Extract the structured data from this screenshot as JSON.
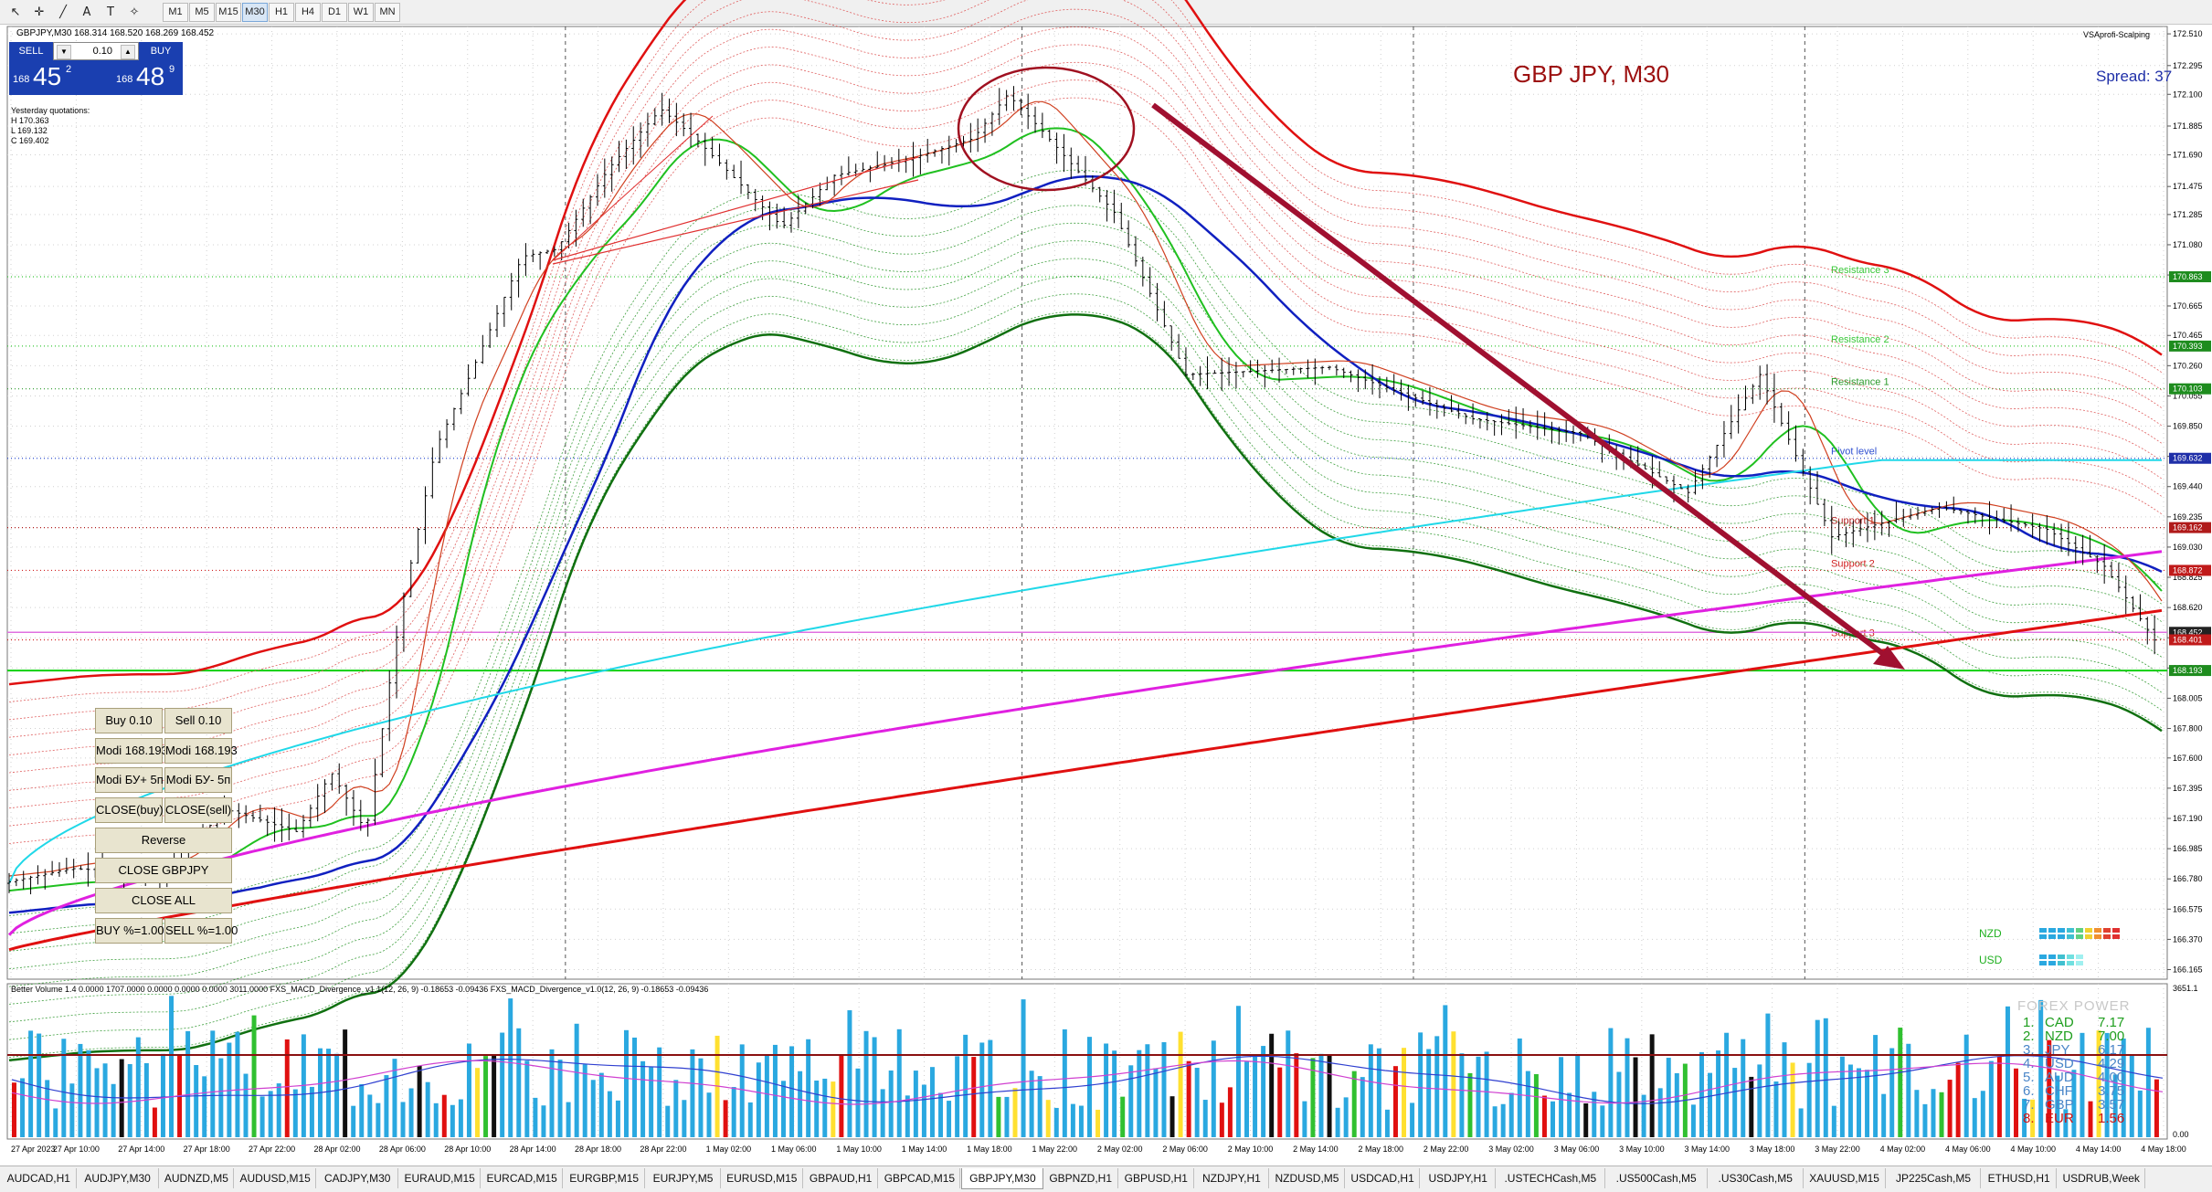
{
  "toolbar": {
    "timeframes": [
      "M1",
      "M5",
      "M15",
      "M30",
      "H1",
      "H4",
      "D1",
      "W1",
      "MN"
    ],
    "selected_timeframe": "M30",
    "tools": [
      "cursor-icon",
      "crosshair-icon",
      "pen-icon",
      "text-icon",
      "label-icon",
      "shapes-icon"
    ]
  },
  "symbol_title": "GBPJPY,M30  168.314 168.520 168.269 168.452",
  "trade_panel": {
    "sell_label": "SELL",
    "buy_label": "BUY",
    "lot": "0.10",
    "sell_price_prefix": "168",
    "sell_price_big": "45",
    "sell_price_sup": "2",
    "buy_price_prefix": "168",
    "buy_price_big": "48",
    "buy_price_sup": "9"
  },
  "yesterday_quotations": {
    "title": "Yesterday quotations:",
    "h": "H 170.363",
    "l": "L 169.132",
    "c": "C 169.402"
  },
  "chart_label": "GBP JPY, M30",
  "spread_label": "Spread: 37",
  "vsa_label": "VSAprofi-Scalping",
  "levels": {
    "resistance3": "Resistance 3",
    "resistance2": "Resistance 2",
    "resistance1": "Resistance 1",
    "pivot": "Pivot level",
    "support1": "Support 1",
    "support2": "Support 2",
    "support3": "Support 3"
  },
  "price_axis": [
    "172.510",
    "172.295",
    "172.100",
    "171.885",
    "171.690",
    "171.475",
    "171.285",
    "171.080",
    "170.875",
    "170.665",
    "170.465",
    "170.260",
    "170.055",
    "169.850",
    "169.645",
    "169.440",
    "169.235",
    "169.030",
    "168.825",
    "168.620",
    "168.415",
    "168.210",
    "168.005",
    "167.800",
    "167.600",
    "167.395",
    "167.190",
    "166.985",
    "166.780",
    "166.575",
    "166.370",
    "166.165"
  ],
  "price_tags": [
    {
      "label": "170.863",
      "color": "#1e8c1e"
    },
    {
      "label": "170.393",
      "color": "#1e8c1e"
    },
    {
      "label": "170.103",
      "color": "#1e8c1e"
    },
    {
      "label": "169.632",
      "color": "#1f2fa8"
    },
    {
      "label": "169.162",
      "color": "#b01a1a"
    },
    {
      "label": "168.872",
      "color": "#c01a1a"
    },
    {
      "label": "168.452",
      "color": "#222222"
    },
    {
      "label": "168.401",
      "color": "#c01a1a"
    },
    {
      "label": "168.193",
      "color": "#1e8c1e"
    }
  ],
  "time_axis": [
    "27 Apr 2023",
    "27 Apr 10:00",
    "27 Apr 14:00",
    "27 Apr 18:00",
    "27 Apr 22:00",
    "28 Apr 02:00",
    "28 Apr 06:00",
    "28 Apr 10:00",
    "28 Apr 14:00",
    "28 Apr 18:00",
    "28 Apr 22:00",
    "1 May 02:00",
    "1 May 06:00",
    "1 May 10:00",
    "1 May 14:00",
    "1 May 18:00",
    "1 May 22:00",
    "2 May 02:00",
    "2 May 06:00",
    "2 May 10:00",
    "2 May 14:00",
    "2 May 18:00",
    "2 May 22:00",
    "3 May 02:00",
    "3 May 06:00",
    "3 May 10:00",
    "3 May 14:00",
    "3 May 18:00",
    "3 May 22:00",
    "4 May 02:00",
    "4 May 06:00",
    "4 May 10:00",
    "4 May 14:00",
    "4 May 18:00"
  ],
  "trade_buttons": {
    "buy": "Buy 0.10",
    "sell": "Sell 0.10",
    "modi_buy": "Modi 168.193",
    "modi_sell": "Modi 168.193",
    "modi_bu_buy": "Modi БУ+ 5п",
    "modi_bu_sell": "Modi БУ- 5п",
    "close_buy": "CLOSE(buy)",
    "close_sell": "CLOSE(sell)",
    "reverse": "Reverse",
    "close_symbol": "CLOSE GBPJPY",
    "close_all": "CLOSE ALL",
    "buy_pct": "BUY %=1.00",
    "sell_pct": "SELL %=1.00"
  },
  "strength_labels": [
    "NZD",
    "USD"
  ],
  "indicator_title": "Better Volume 1.4 0.0000 1707.0000 0.0000 0.0000 0.0000 3011.0000   FXS_MACD_Divergence_v1.1(12, 26, 9) -0.18653 -0.09436   FXS_MACD_Divergence_v1.0(12, 26, 9) -0.18653 -0.09436",
  "indicator_axis": [
    "3651.1",
    "0.00"
  ],
  "forex_power": {
    "title": "FOREX POWER",
    "rows": [
      {
        "rank": "1.",
        "cur": "CAD",
        "val": "7.17",
        "color": "#1e9e1e"
      },
      {
        "rank": "2.",
        "cur": "NZD",
        "val": "7.00",
        "color": "#1e9e1e"
      },
      {
        "rank": "3.",
        "cur": "JPY",
        "val": "6.17",
        "color": "#4a86c8"
      },
      {
        "rank": "4.",
        "cur": "USD",
        "val": "4.29",
        "color": "#4a86c8"
      },
      {
        "rank": "5.",
        "cur": "AUD",
        "val": "4.00",
        "color": "#4a86c8"
      },
      {
        "rank": "6.",
        "cur": "CHF",
        "val": "3.75",
        "color": "#4a86c8"
      },
      {
        "rank": "7.",
        "cur": "GBP",
        "val": "3.57",
        "color": "#4a86c8"
      },
      {
        "rank": "8.",
        "cur": "EUR",
        "val": "1.56",
        "color": "#d01010"
      }
    ]
  },
  "tabs": [
    "AUDCAD,H1",
    "AUDJPY,M30",
    "AUDNZD,M5",
    "AUDUSD,M15",
    "CADJPY,M30",
    "EURAUD,M15",
    "EURCAD,M15",
    "EURGBP,M15",
    "EURJPY,M5",
    "EURUSD,M15",
    "GBPAUD,H1",
    "GBPCAD,M15",
    "GBPJPY,M30",
    "GBPNZD,H1",
    "GBPUSD,H1",
    "NZDJPY,H1",
    "NZDUSD,M5",
    "USDCAD,H1",
    "USDJPY,H1",
    ".USTECHCash,M5",
    ".US500Cash,M5",
    ".US30Cash,M5",
    "XAUUSD,M15",
    "JP225Cash,M5",
    "ETHUSD,H1",
    "USDRUB,Week"
  ],
  "active_tab": "GBPJPY,M30"
}
